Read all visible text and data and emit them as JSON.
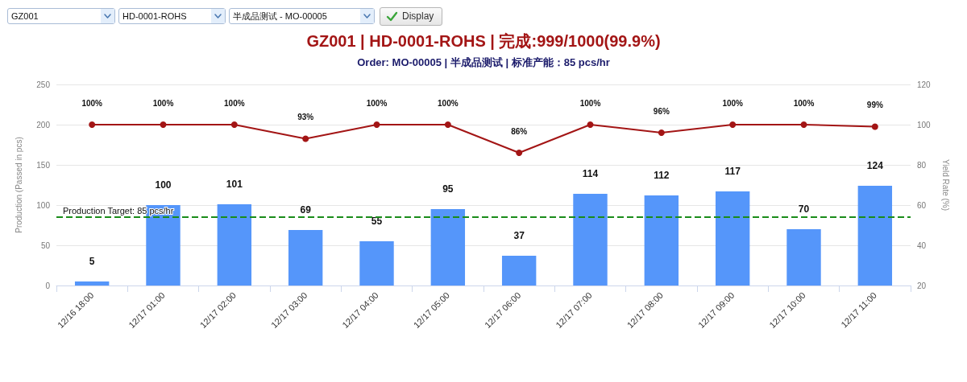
{
  "chart_data": {
    "type": "bar",
    "title": "GZ001 | HD-0001-ROHS | 完成:999/1000(99.9%)",
    "subtitle": "Order: MO-00005 | 半成品测试 | 标准产能：85 pcs/hr",
    "ylabel": "Production (Passed in pcs)",
    "y2label": "Yield Rate (%)",
    "annotations": [
      "GZ001",
      "HD-0001-ROHS",
      "半成品测试 - MO-00005",
      "Display"
    ],
    "categories": [
      "12/16 18:00",
      "12/17 01:00",
      "12/17 02:00",
      "12/17 03:00",
      "12/17 04:00",
      "12/17 05:00",
      "12/17 06:00",
      "12/17 07:00",
      "12/17 08:00",
      "12/17 09:00",
      "12/17 10:00",
      "12/17 11:00"
    ],
    "series": [
      {
        "color": "#5596fa",
        "values": [
          5,
          100,
          101,
          69,
          55,
          95,
          37,
          114,
          112,
          117,
          70,
          124
        ],
        "value_labels": [
          "5",
          "100",
          "101",
          "69",
          "55",
          "95",
          "37",
          "114",
          "112",
          "117",
          "70",
          "124"
        ]
      },
      {
        "type": "line",
        "axis": "y2",
        "color": "#a31515",
        "values": [
          100,
          100,
          100,
          93,
          100,
          100,
          86,
          100,
          96,
          100,
          100,
          99
        ],
        "value_labels": [
          "100%",
          "100%",
          "100%",
          "93%",
          "100%",
          "100%",
          "86%",
          "100%",
          "96%",
          "100%",
          "100%",
          "99%"
        ]
      }
    ],
    "ylim": [
      0,
      250
    ],
    "yticks": [
      0,
      50,
      100,
      150,
      200,
      250
    ],
    "y2lim": [
      20,
      120
    ],
    "y2ticks": [
      20,
      40,
      60,
      80,
      100,
      120
    ],
    "grid": "y",
    "marker": "circle",
    "ref_lines": [
      {
        "axis": "y",
        "value": 85,
        "label": "Production Target: 85 pcs/hr",
        "color": "#1a8c1a",
        "line_style": "dashed"
      }
    ]
  }
}
